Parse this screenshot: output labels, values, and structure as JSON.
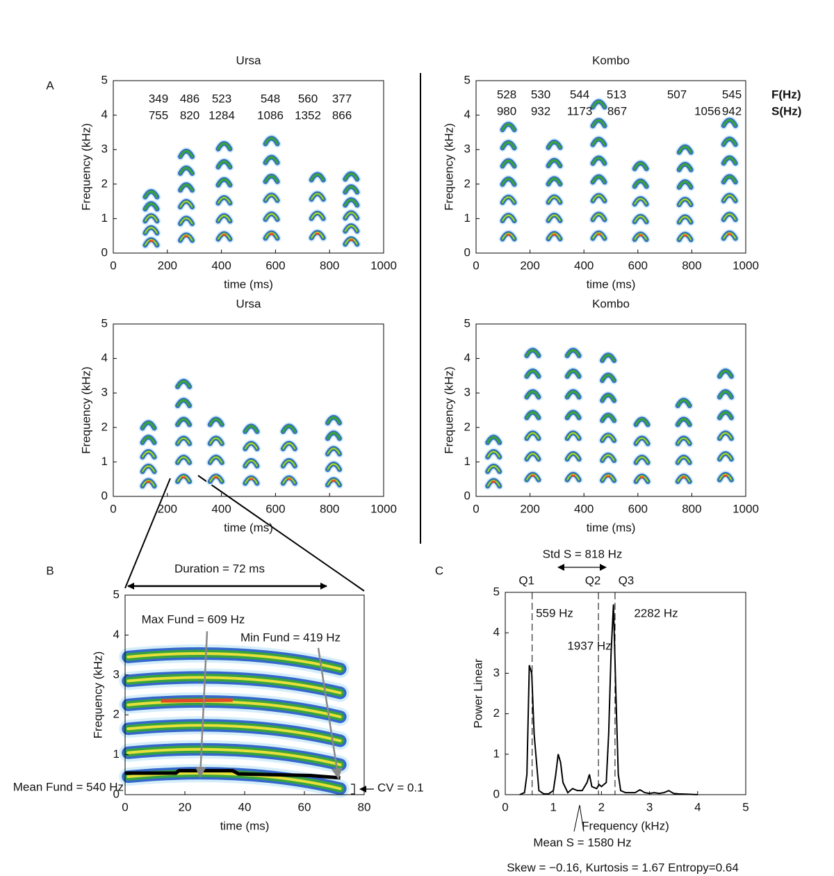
{
  "chart_data": [
    {
      "type": "spectrogram",
      "panel_label": "A",
      "title": "Ursa",
      "xlabel": "time (ms)",
      "ylabel": "Frequency (kHz)",
      "xlim": [
        0,
        1000
      ],
      "xticks": [
        0,
        200,
        400,
        600,
        800,
        1000
      ],
      "ylim": [
        0,
        5
      ],
      "yticks": [
        0,
        1,
        2,
        3,
        4,
        5
      ],
      "f_values": [
        349,
        486,
        523,
        548,
        560,
        377
      ],
      "s_values": [
        755,
        820,
        1284,
        1086,
        1352,
        866
      ]
    },
    {
      "type": "spectrogram",
      "title": "Kombo",
      "xlabel": "time (ms)",
      "ylabel": "Frequency (kHz)",
      "xlim": [
        0,
        1000
      ],
      "xticks": [
        0,
        200,
        400,
        600,
        800,
        1000
      ],
      "ylim": [
        0,
        5
      ],
      "yticks": [
        0,
        1,
        2,
        3,
        4,
        5
      ],
      "f_values": [
        528,
        530,
        544,
        513,
        507,
        545
      ],
      "s_values": [
        980,
        932,
        1173,
        867,
        1056,
        942
      ],
      "row_labels": [
        "F(Hz)",
        "S(Hz)"
      ]
    },
    {
      "type": "spectrogram",
      "title": "Ursa",
      "xlabel": "time (ms)",
      "ylabel": "Frequency (kHz)",
      "xlim": [
        0,
        1000
      ],
      "xticks": [
        0,
        200,
        400,
        600,
        800,
        1000
      ],
      "ylim": [
        0,
        5
      ],
      "yticks": [
        0,
        1,
        2,
        3,
        4,
        5
      ]
    },
    {
      "type": "spectrogram",
      "title": "Kombo",
      "xlabel": "time (ms)",
      "ylabel": "Frequency (kHz)",
      "xlim": [
        0,
        1000
      ],
      "xticks": [
        0,
        200,
        400,
        600,
        800,
        1000
      ],
      "ylim": [
        0,
        5
      ],
      "yticks": [
        0,
        1,
        2,
        3,
        4,
        5
      ]
    },
    {
      "type": "spectrogram",
      "panel_label": "B",
      "xlabel": "time (ms)",
      "ylabel": "Frequency (kHz)",
      "xlim": [
        0,
        80
      ],
      "xticks": [
        0,
        20,
        40,
        60,
        80
      ],
      "ylim": [
        0,
        5
      ],
      "yticks": [
        0,
        1,
        2,
        3,
        4,
        5
      ],
      "annotations": {
        "duration": "Duration = 72 ms",
        "max_fund": "Max Fund = 609 Hz",
        "min_fund": "Min Fund = 419 Hz",
        "mean_fund": "Mean Fund = 540 Hz",
        "cv": "CV = 0.1"
      }
    },
    {
      "type": "line",
      "panel_label": "C",
      "xlabel": "Frequency (kHz)",
      "ylabel": "Power Linear",
      "color": "#000000",
      "xlim": [
        0,
        5
      ],
      "xticks": [
        0,
        1,
        2,
        3,
        4,
        5
      ],
      "ylim": [
        0,
        5
      ],
      "yticks": [
        0,
        1,
        2,
        3,
        4,
        5
      ],
      "x": [
        0.3,
        0.4,
        0.45,
        0.5,
        0.55,
        0.6,
        0.7,
        0.8,
        0.9,
        1.0,
        1.05,
        1.1,
        1.15,
        1.2,
        1.3,
        1.4,
        1.5,
        1.6,
        1.7,
        1.75,
        1.8,
        1.9,
        1.95,
        2.0,
        2.1,
        2.15,
        2.2,
        2.25,
        2.3,
        2.35,
        2.4,
        2.5,
        2.6,
        2.7,
        2.8,
        2.9,
        3.0,
        3.1,
        3.2,
        3.3,
        3.4,
        3.5,
        3.6,
        3.8,
        4.0
      ],
      "values": [
        0,
        0.05,
        0.5,
        3.2,
        3.0,
        1.5,
        0.1,
        0.02,
        0.02,
        0.1,
        0.5,
        1.0,
        0.8,
        0.3,
        0.05,
        0.15,
        0.1,
        0.1,
        0.3,
        0.5,
        0.2,
        0.15,
        0.25,
        0.2,
        0.3,
        1.5,
        3.5,
        4.7,
        2.5,
        0.5,
        0.1,
        0.05,
        0.05,
        0.05,
        0.12,
        0.05,
        0.03,
        0.05,
        0.03,
        0.05,
        0.1,
        0.03,
        0.02,
        0.01,
        0
      ],
      "quartiles": [
        0.559,
        1.937,
        2.282
      ],
      "quartile_names": [
        "Q1",
        "Q2",
        "Q3"
      ],
      "quartile_labels": [
        "559 Hz",
        "1937 Hz",
        "2282 Hz"
      ],
      "annotations": {
        "std": "Std S = 818 Hz",
        "mean": "Mean S = 1580 Hz",
        "stats": "Skew = −0.16, Kurtosis = 1.67 Entropy=0.64"
      }
    }
  ]
}
